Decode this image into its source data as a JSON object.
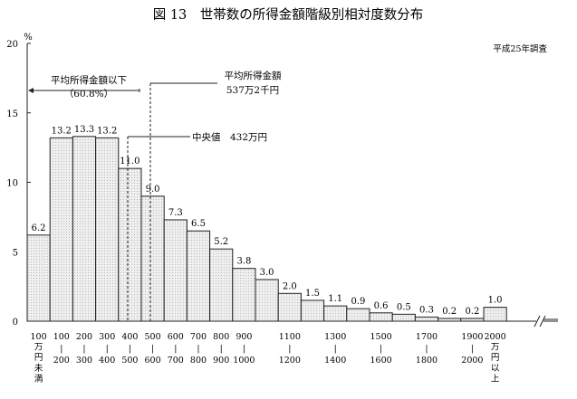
{
  "chart_data": {
    "type": "bar",
    "title": "図 13　世帯数の所得金額階級別相対度数分布",
    "subtitle": "平成25年調査",
    "ylabel": "%",
    "ylim": [
      0,
      20
    ],
    "yticks": [
      0,
      5,
      10,
      15,
      20
    ],
    "values": [
      6.2,
      13.2,
      13.3,
      13.2,
      11.0,
      9.0,
      7.3,
      6.5,
      5.2,
      3.8,
      3.0,
      2.0,
      1.5,
      1.1,
      0.9,
      0.6,
      0.5,
      0.3,
      0.2,
      0.2,
      1.0
    ],
    "value_labels": [
      "6.2",
      "13.2",
      "13.3",
      "13.2",
      "11.0",
      "9.0",
      "7.3",
      "6.5",
      "5.2",
      "3.8",
      "3.0",
      "2.0",
      "1.5",
      "1.1",
      "0.9",
      "0.6",
      "0.5",
      "0.3",
      "0.2",
      "0.2",
      "1.0"
    ],
    "x_tick_labels": [
      {
        "lines": [
          "100",
          "万",
          "円",
          "未",
          "満"
        ]
      },
      {
        "lines": [
          "100",
          "|",
          "200"
        ]
      },
      {
        "lines": [
          "200",
          "|",
          "300"
        ]
      },
      {
        "lines": [
          "300",
          "|",
          "400"
        ]
      },
      {
        "lines": [
          "400",
          "|",
          "500"
        ]
      },
      {
        "lines": [
          "500",
          "|",
          "600"
        ]
      },
      {
        "lines": [
          "600",
          "|",
          "700"
        ]
      },
      {
        "lines": [
          "700",
          "|",
          "800"
        ]
      },
      {
        "lines": [
          "800",
          "|",
          "900"
        ]
      },
      {
        "lines": [
          "900",
          "|",
          "1000"
        ]
      },
      {
        "lines": [
          "1100",
          "|",
          "1200"
        ]
      },
      {
        "lines": [
          "1300",
          "|",
          "1400"
        ]
      },
      {
        "lines": [
          "1500",
          "|",
          "1600"
        ]
      },
      {
        "lines": [
          "1700",
          "|",
          "1800"
        ]
      },
      {
        "lines": [
          "1900",
          "|",
          "2000"
        ]
      },
      {
        "lines": [
          "2000",
          "万",
          "円",
          "以",
          "上"
        ]
      }
    ],
    "annotations": {
      "below_mean": [
        "平均所得金額以下",
        "（60.8%）"
      ],
      "mean": [
        "平均所得金額",
        "537万2千円"
      ],
      "median": "中央値　432万円"
    },
    "colors": {
      "bar_fill": "#efefef",
      "bar_stroke": "#222222",
      "axis": "#222222"
    }
  }
}
